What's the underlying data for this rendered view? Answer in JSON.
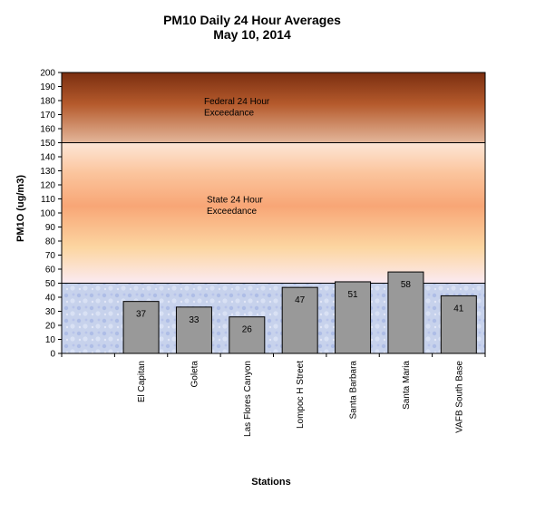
{
  "chart_data": {
    "type": "bar",
    "title": "PM10 Daily 24 Hour Averages",
    "subtitle": "May 10, 2014",
    "xlabel": "Stations",
    "ylabel": "PM1O (ug/m3)",
    "ylim": [
      0,
      200
    ],
    "ytick_step": 10,
    "categories": [
      "El Capitan",
      "Goleta",
      "Las Flores Canyon",
      "Lompoc H Street",
      "Santa Barbara",
      "Santa Maria",
      "VAFB South Base"
    ],
    "values": [
      37,
      33,
      26,
      47,
      51,
      58,
      41
    ],
    "bar_color": "#999999",
    "grid": false,
    "bands": [
      {
        "label_line1": "Federal 24 Hour",
        "label_line2": "Exceedance",
        "from": 150,
        "to": 200
      },
      {
        "label_line1": "State 24 Hour",
        "label_line2": "Exceedance",
        "from": 50,
        "to": 150
      },
      {
        "from": 0,
        "to": 50
      }
    ]
  }
}
